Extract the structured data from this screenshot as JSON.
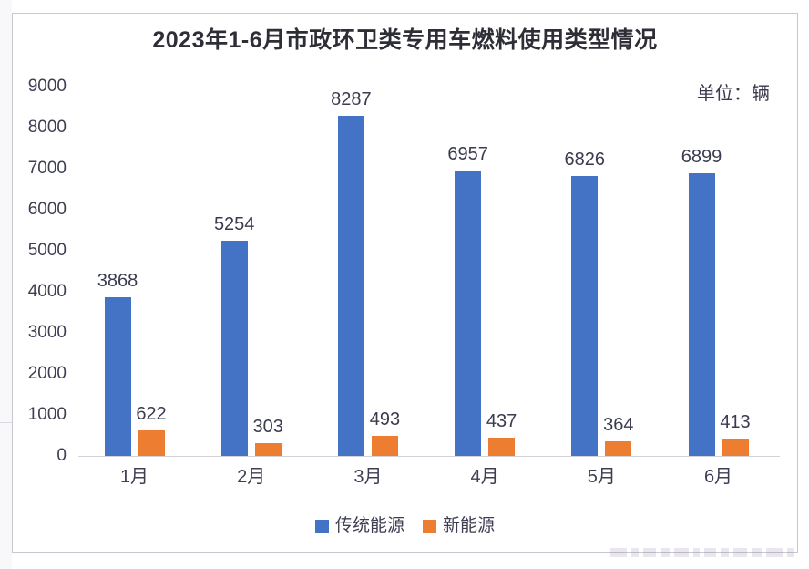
{
  "title": "2023年1-6月市政环卫类专用车燃料使用类型情况",
  "unit_label": "单位：辆",
  "chart_data": {
    "type": "bar",
    "title": "2023年1-6月市政环卫类专用车燃料使用类型情况",
    "unit": "辆",
    "categories": [
      "1月",
      "2月",
      "3月",
      "4月",
      "5月",
      "6月"
    ],
    "series": [
      {
        "name": "传统能源",
        "color": "#4472C4",
        "values": [
          3868,
          5254,
          8287,
          6957,
          6826,
          6899
        ]
      },
      {
        "name": "新能源",
        "color": "#ED7D31",
        "values": [
          622,
          303,
          493,
          437,
          364,
          413
        ]
      }
    ],
    "xlabel": "",
    "ylabel": "",
    "ylim": [
      0,
      9000
    ],
    "ytick_step": 1000,
    "yticks": [
      0,
      1000,
      2000,
      3000,
      4000,
      5000,
      6000,
      7000,
      8000,
      9000
    ],
    "grid": false,
    "data_labels": true,
    "legend_position": "bottom"
  },
  "colors": {
    "series_traditional": "#4472C4",
    "series_new_energy": "#ED7D31",
    "title_text": "#2e2e36",
    "axis_text": "#3e3e52",
    "axis_line": "#d2d0d8",
    "panel_border": "#c9c7d0"
  }
}
